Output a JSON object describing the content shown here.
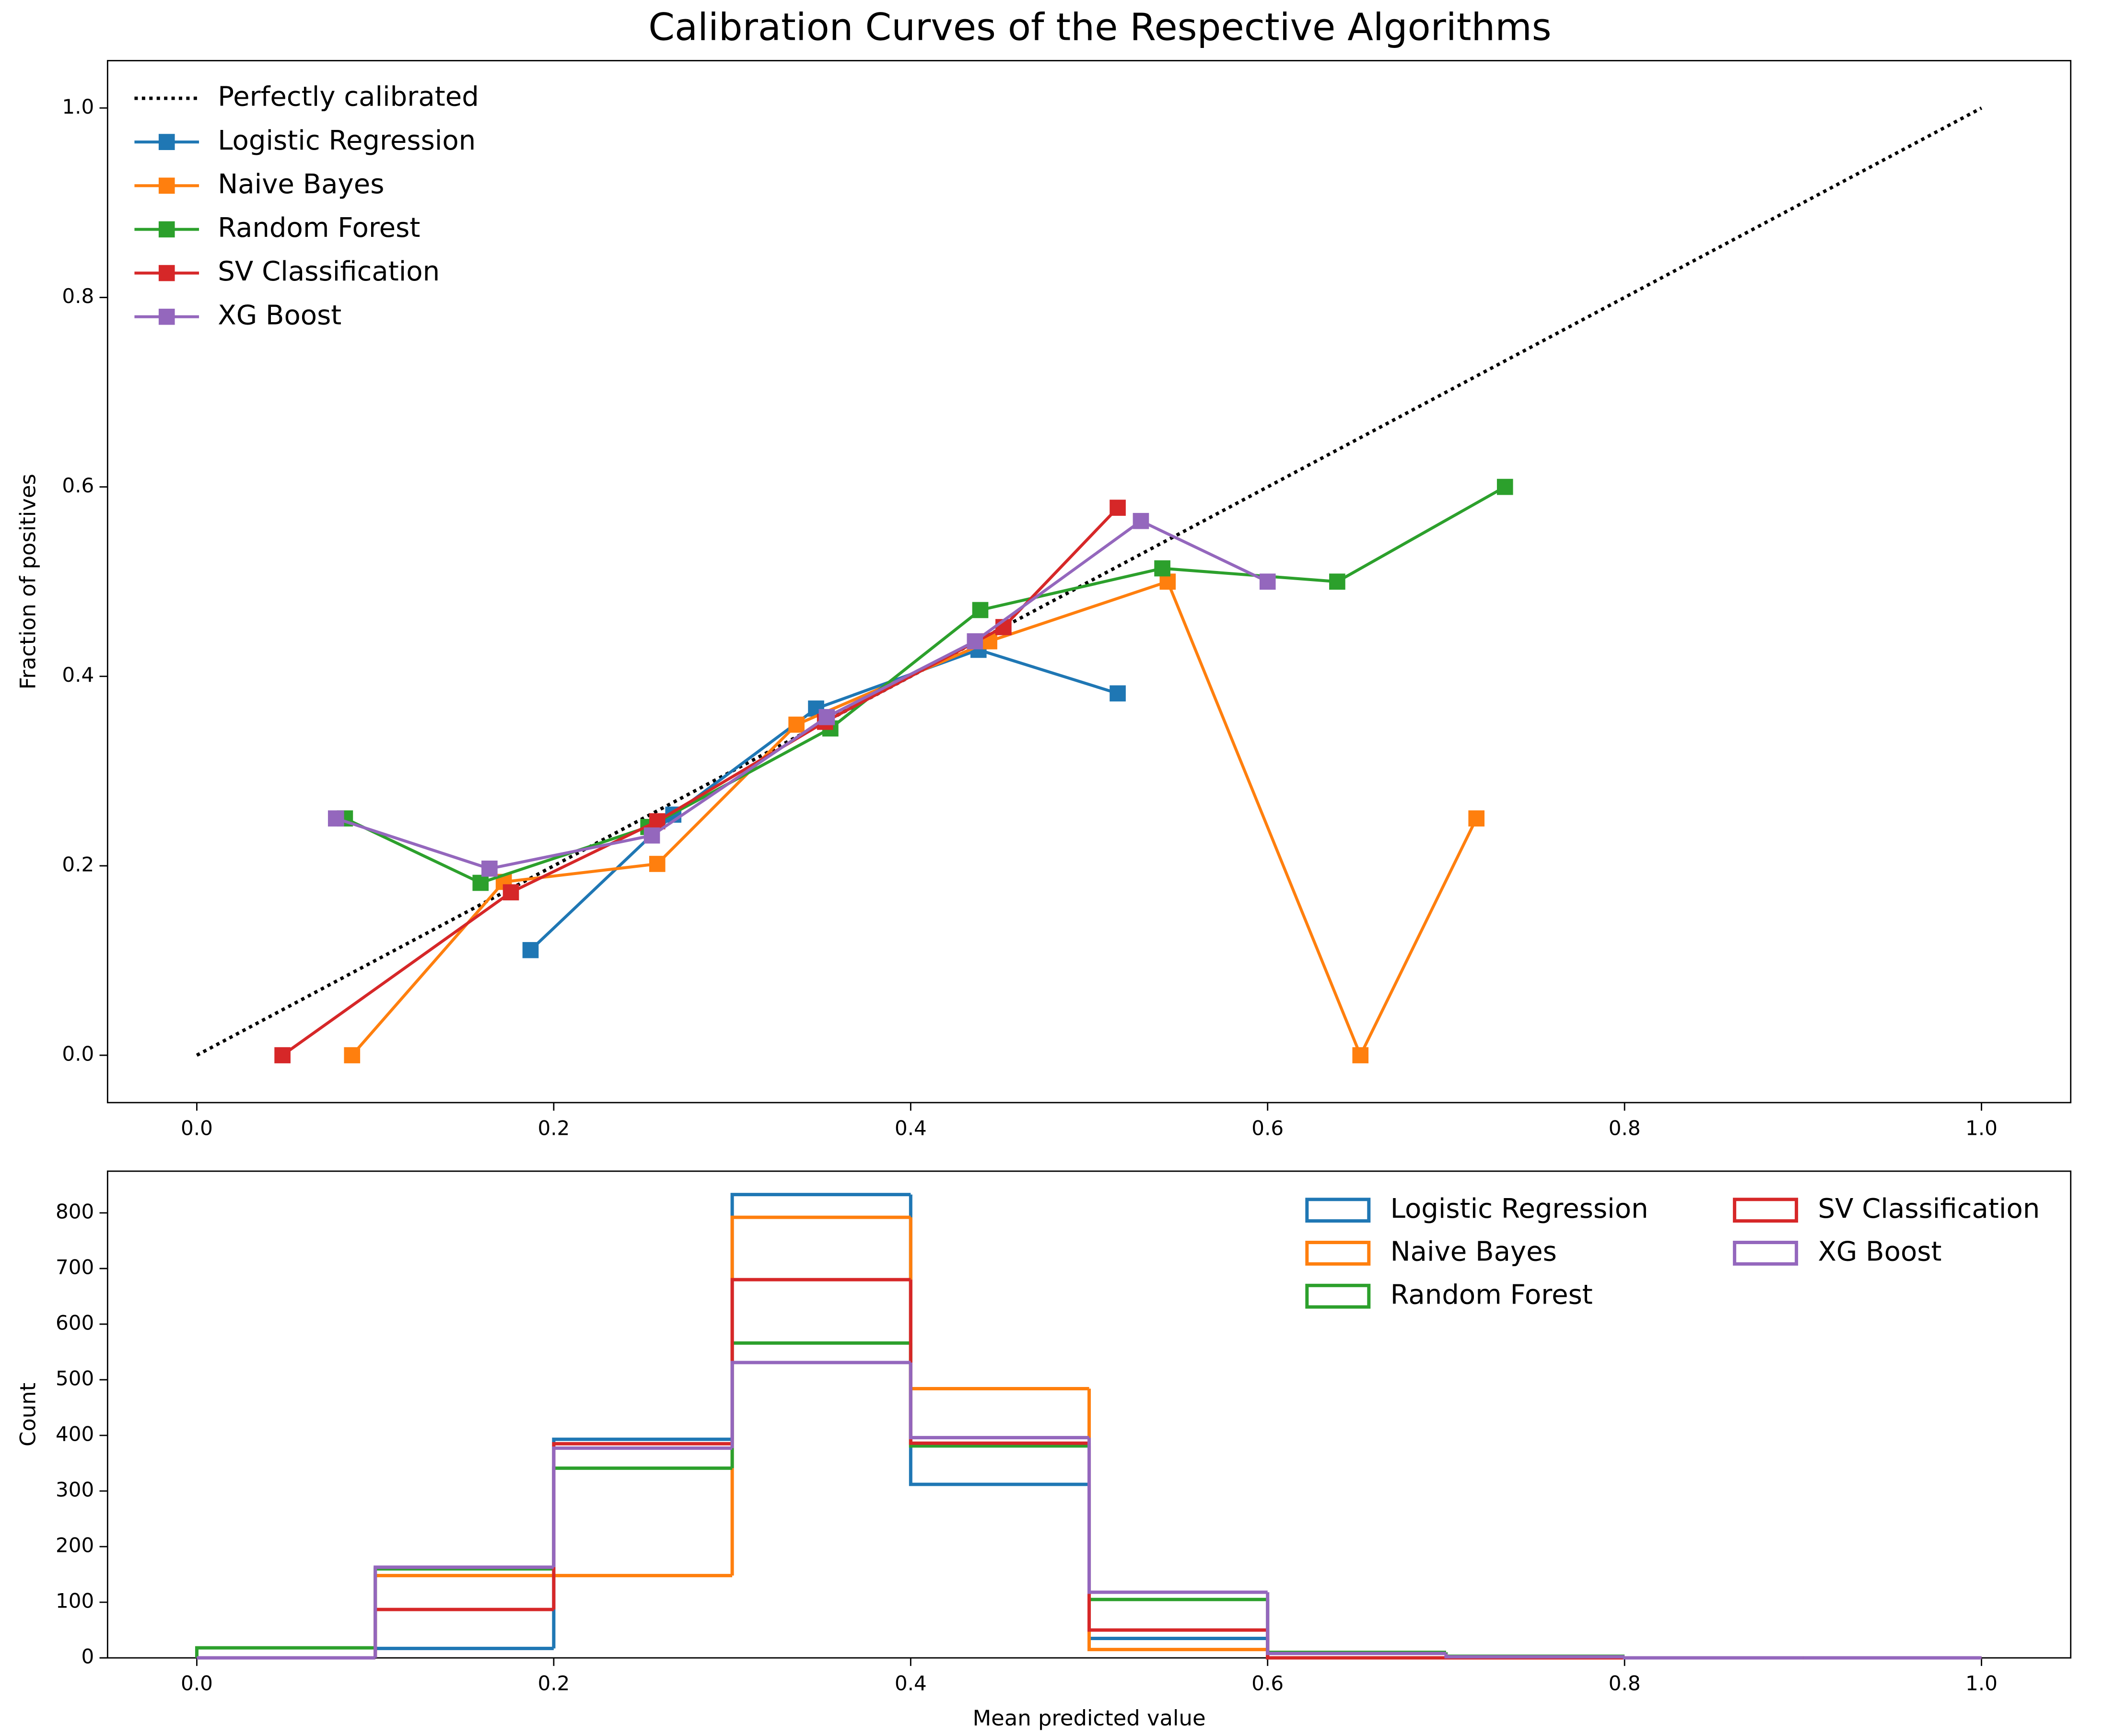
{
  "chart_data": [
    {
      "type": "line",
      "title": "Calibration Curves of the Respective Algorithms",
      "ylabel": "Fraction of positives",
      "xlim": [
        -0.05,
        1.05
      ],
      "ylim": [
        -0.05,
        1.05
      ],
      "xticks": [
        {
          "value": 0,
          "label": "0.0"
        },
        0.2,
        0.4,
        0.6,
        0.8,
        {
          "value": 1,
          "label": "1.0"
        }
      ],
      "yticks": [
        {
          "value": 0,
          "label": "0.0"
        },
        0.2,
        0.4,
        0.6,
        0.8,
        {
          "value": 1,
          "label": "1.0"
        }
      ],
      "legend": "upper left",
      "series": [
        {
          "name": "Perfectly calibrated",
          "color": "#000000",
          "style": "dotted",
          "x": [
            0,
            1
          ],
          "values": [
            0,
            1
          ]
        },
        {
          "name": "Logistic Regression",
          "color": "#1f77b4",
          "x": [
            0.187,
            0.267,
            0.347,
            0.438,
            0.516
          ],
          "values": [
            0.111,
            0.254,
            0.366,
            0.428,
            0.382
          ]
        },
        {
          "name": "Naive Bayes",
          "color": "#ff7f0e",
          "x": [
            0.087,
            0.172,
            0.258,
            0.336,
            0.444,
            0.544,
            0.652,
            0.717
          ],
          "values": [
            0,
            0.183,
            0.202,
            0.349,
            0.437,
            0.5,
            0,
            0.25
          ]
        },
        {
          "name": "Random Forest",
          "color": "#2ca02c",
          "x": [
            0.083,
            0.159,
            0.253,
            0.355,
            0.439,
            0.541,
            0.639,
            0.733
          ],
          "values": [
            0.25,
            0.182,
            0.241,
            0.345,
            0.47,
            0.514,
            0.5,
            0.6
          ]
        },
        {
          "name": "SV Classification",
          "color": "#d62728",
          "x": [
            0.048,
            0.176,
            0.258,
            0.352,
            0.452,
            0.516
          ],
          "values": [
            0,
            0.172,
            0.247,
            0.352,
            0.452,
            0.578
          ]
        },
        {
          "name": "XG Boost",
          "color": "#9467bd",
          "x": [
            0.078,
            0.164,
            0.255,
            0.353,
            0.436,
            0.529,
            0.6
          ],
          "values": [
            0.25,
            0.197,
            0.232,
            0.357,
            0.437,
            0.564,
            0.5
          ]
        }
      ]
    },
    {
      "type": "histogram",
      "xlabel": "Mean predicted value",
      "ylabel": "Count",
      "xlim": [
        -0.05,
        1.05
      ],
      "ylim": [
        0,
        875
      ],
      "xticks": [
        {
          "value": 0,
          "label": "0.0"
        },
        0.2,
        0.4,
        0.6,
        0.8,
        {
          "value": 1,
          "label": "1.0"
        }
      ],
      "yticks": [
        0,
        100,
        200,
        300,
        400,
        500,
        600,
        700,
        800
      ],
      "legend": "upper right",
      "legend_columns": 2,
      "bins": [
        0,
        0.1,
        0.2,
        0.3,
        0.4,
        0.5,
        0.6,
        0.7,
        0.8,
        0.9,
        1
      ],
      "series": [
        {
          "name": "Logistic Regression",
          "color": "#1f77b4",
          "values": [
            0,
            17,
            393,
            833,
            312,
            35,
            0,
            0,
            0,
            0
          ]
        },
        {
          "name": "Naive Bayes",
          "color": "#ff7f0e",
          "values": [
            0,
            148,
            148,
            792,
            484,
            15,
            0,
            0,
            0,
            0
          ]
        },
        {
          "name": "Random Forest",
          "color": "#2ca02c",
          "values": [
            18,
            160,
            341,
            566,
            381,
            105,
            10,
            3,
            0,
            0
          ]
        },
        {
          "name": "SV Classification",
          "color": "#d62728",
          "values": [
            0,
            87,
            385,
            680,
            386,
            50,
            0,
            0,
            0,
            0
          ]
        },
        {
          "name": "XG Boost",
          "color": "#9467bd",
          "values": [
            0,
            163,
            377,
            531,
            396,
            118,
            8,
            2,
            0,
            0
          ]
        }
      ]
    }
  ]
}
